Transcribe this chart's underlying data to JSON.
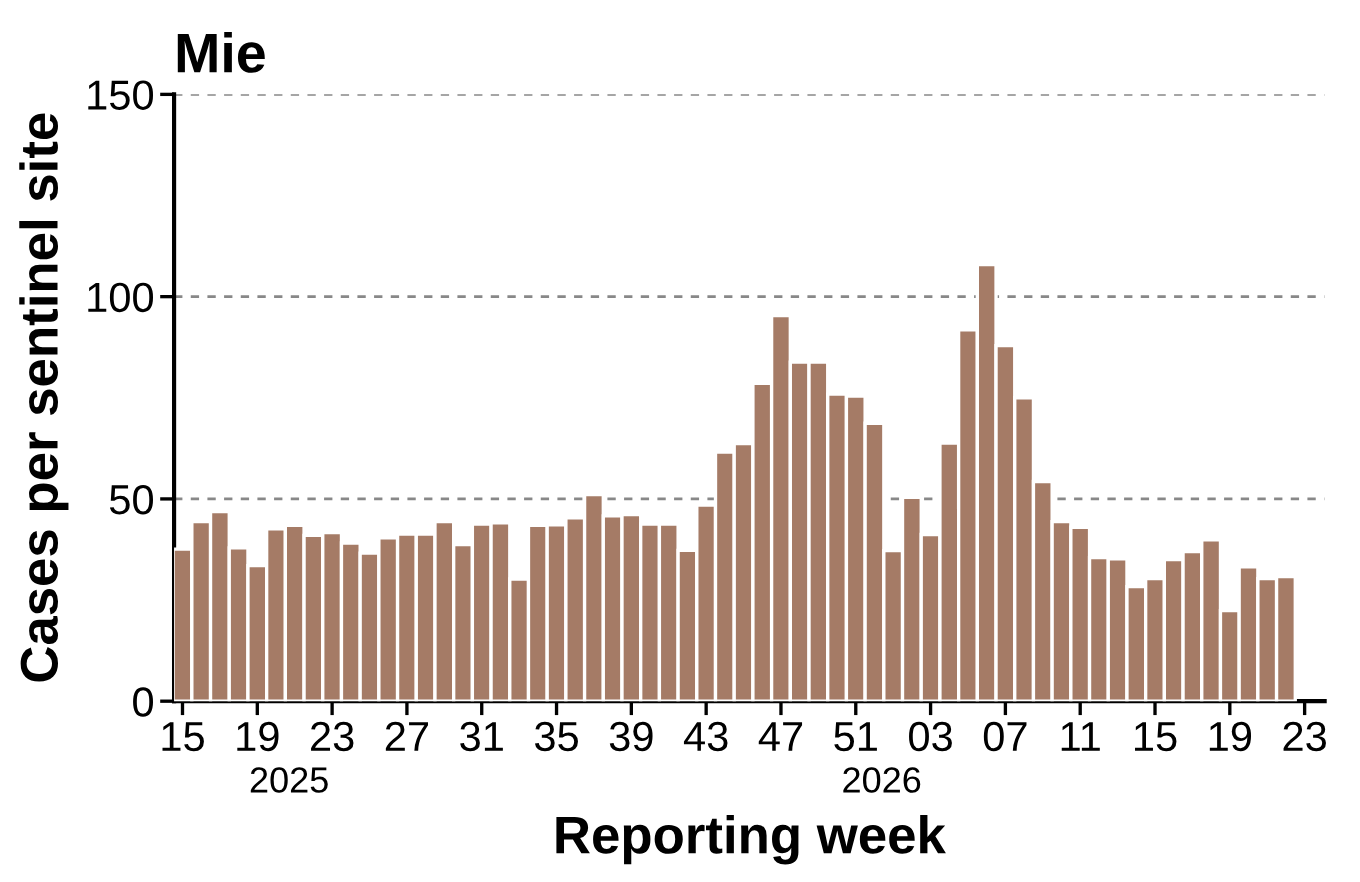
{
  "chart_data": {
    "type": "bar",
    "title": "Mie",
    "xlabel": "Reporting week",
    "ylabel": "Cases per sentinel site",
    "categories": [
      "15",
      null,
      null,
      null,
      "19",
      null,
      null,
      null,
      "23",
      null,
      null,
      null,
      "27",
      null,
      null,
      null,
      "31",
      null,
      null,
      null,
      "35",
      null,
      null,
      null,
      "39",
      null,
      null,
      null,
      "43",
      null,
      null,
      null,
      "47",
      null,
      null,
      null,
      "51",
      null,
      null,
      null,
      "03",
      null,
      null,
      null,
      "07",
      null,
      null,
      null,
      "11",
      null,
      null,
      null,
      "15",
      null,
      null,
      null,
      "19",
      null,
      null,
      null,
      "23"
    ],
    "values": [
      37.6,
      44.4,
      46.9,
      37.9,
      33.5,
      42.6,
      43.5,
      41.0,
      41.7,
      39.1,
      36.6,
      40.4,
      41.3,
      41.3,
      44.4,
      38.7,
      43.8,
      44.1,
      30.2,
      43.5,
      43.6,
      45.3,
      51.1,
      45.8,
      46.1,
      43.8,
      43.8,
      37.3,
      48.5,
      61.6,
      63.7,
      78.6,
      95.3,
      83.8,
      83.8,
      75.9,
      75.4,
      68.7,
      37.2,
      50.4,
      41.2,
      63.8,
      91.8,
      107.9,
      87.9,
      75.0,
      54.3,
      44.4,
      43.0,
      35.5,
      35.2,
      28.3,
      30.3,
      35.0,
      37.0,
      39.9,
      22.4,
      33.2,
      30.3,
      30.8,
      null
    ],
    "color": "#a57b66",
    "ylim": [
      0,
      150
    ],
    "yticks": [
      0,
      50,
      100,
      150
    ],
    "grid": "y",
    "annotations": [
      "2025",
      "2026"
    ]
  }
}
